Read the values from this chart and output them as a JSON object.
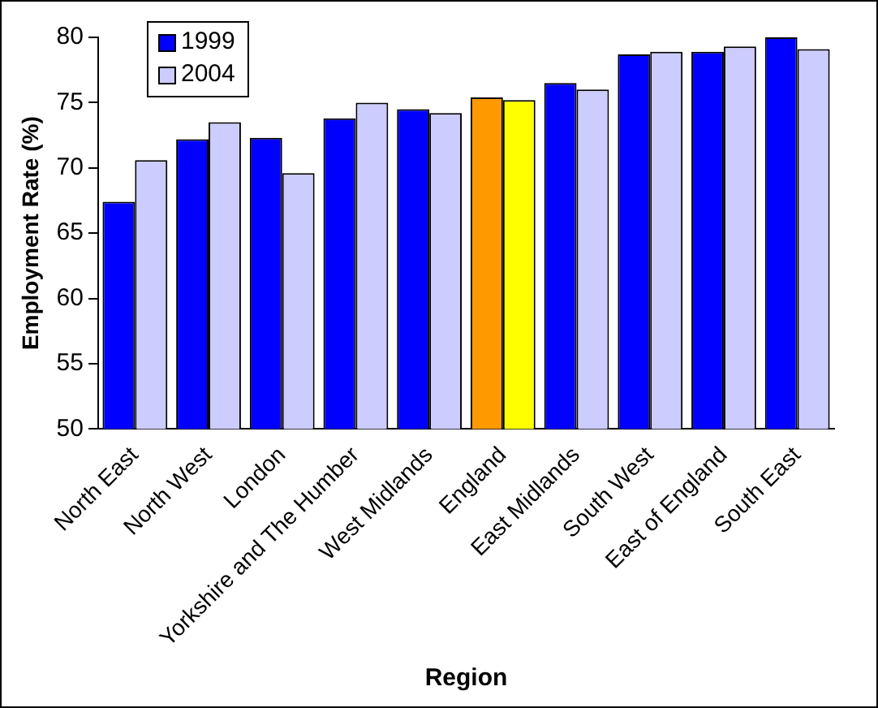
{
  "chart_data": {
    "type": "bar",
    "xlabel": "Region",
    "ylabel": "Employment Rate (%)",
    "categories": [
      "North East",
      "North West",
      "London",
      "Yorkshire and The Humber",
      "West Midlands",
      "England",
      "East Midlands",
      "South West",
      "East of England",
      "South East"
    ],
    "series": [
      {
        "name": "1999",
        "color": "#0000ff",
        "colors": [
          "#0000ff",
          "#0000ff",
          "#0000ff",
          "#0000ff",
          "#0000ff",
          "#ff9900",
          "#0000ff",
          "#0000ff",
          "#0000ff",
          "#0000ff"
        ],
        "values": [
          67.4,
          72.2,
          72.3,
          73.8,
          74.5,
          75.4,
          76.5,
          78.7,
          78.9,
          80.0
        ]
      },
      {
        "name": "2004",
        "color": "#ccccff",
        "colors": [
          "#ccccff",
          "#ccccff",
          "#ccccff",
          "#ccccff",
          "#ccccff",
          "#ffff00",
          "#ccccff",
          "#ccccff",
          "#ccccff",
          "#ccccff"
        ],
        "values": [
          70.6,
          73.5,
          69.6,
          75.0,
          74.2,
          75.2,
          76.0,
          78.9,
          79.3,
          79.1
        ]
      }
    ],
    "ylim": [
      50,
      80
    ],
    "yticks": [
      50,
      55,
      60,
      65,
      70,
      75,
      80
    ],
    "grid": false,
    "legend": "top left"
  }
}
